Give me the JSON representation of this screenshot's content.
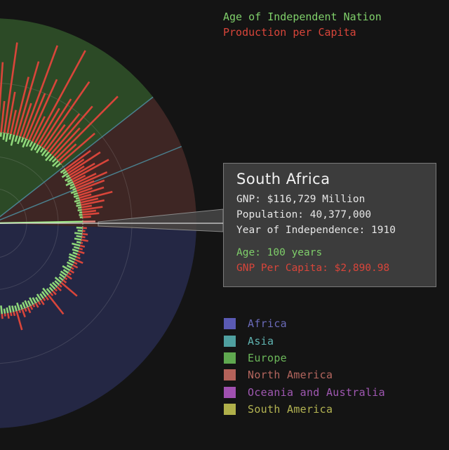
{
  "legend": {
    "age_label": "Age of Independent Nation",
    "production_label": "Production per Capita",
    "age_color": "#7fcf6a",
    "production_color": "#d9453a"
  },
  "tooltip": {
    "country": "South Africa",
    "gnp": "GNP: $116,729 Million",
    "population": "Population: 40,377,000",
    "independence": "Year of Independence: 1910",
    "age": "Age: 100 years",
    "gnp_per_capita": "GNP Per Capita: $2,890.98"
  },
  "regions": [
    {
      "label": "Africa",
      "color": "#5a5ab4",
      "text_color": "#6a6ab8"
    },
    {
      "label": "Asia",
      "color": "#4fa0a0",
      "text_color": "#5fb2b0"
    },
    {
      "label": "Europe",
      "color": "#5fa84f",
      "text_color": "#6cb85a"
    },
    {
      "label": "North America",
      "color": "#b4625a",
      "text_color": "#b4665e"
    },
    {
      "label": "Oceania and Australia",
      "color": "#a050b0",
      "text_color": "#a058b2"
    },
    {
      "label": "South America",
      "color": "#b0b04a",
      "text_color": "#b4b452"
    }
  ],
  "chart_data": {
    "type": "radial-bar",
    "highlighted": "South Africa",
    "series": [
      {
        "name": "Age of Independent Nation",
        "color": "#7fcf6a"
      },
      {
        "name": "Production per Capita",
        "color": "#d9453a"
      }
    ],
    "sectors": [
      {
        "region": "Europe",
        "fill": "#2c4a26",
        "start_deg": 222,
        "end_deg": 322
      },
      {
        "region": "North America",
        "fill": "#3e2624",
        "start_deg": 322,
        "end_deg": 362
      },
      {
        "region": "Africa",
        "fill": "#242744",
        "start_deg": 362,
        "end_deg": 480
      }
    ],
    "bars": {
      "europe_production": [
        55,
        40,
        70,
        30,
        85,
        25,
        60,
        45,
        95,
        35,
        50,
        80,
        20,
        65,
        120,
        40,
        90,
        30,
        75,
        55,
        100,
        45,
        130,
        60,
        35,
        85,
        110,
        50,
        140,
        70,
        95,
        40,
        150,
        60,
        80,
        115,
        45,
        70,
        90,
        55,
        125,
        35,
        65
      ],
      "europe_age": [
        10,
        8,
        14,
        6,
        12,
        20,
        9,
        11,
        35,
        18,
        44,
        13,
        7,
        22,
        10,
        15,
        8,
        12,
        26,
        9,
        14,
        6,
        10,
        12,
        8,
        16,
        9,
        11,
        7,
        13,
        10,
        8,
        12,
        9,
        11,
        7,
        10,
        8,
        12,
        9,
        7,
        11,
        8
      ],
      "north_america_production": [
        45,
        30,
        55,
        25,
        40,
        60,
        20,
        35,
        50,
        28,
        42,
        22,
        38,
        18,
        48,
        26,
        34,
        15,
        30,
        20,
        24,
        12
      ],
      "north_america_age": [
        8,
        6,
        10,
        5,
        9,
        7,
        11,
        6,
        8,
        5,
        9,
        6,
        7,
        5,
        8,
        6,
        7,
        5,
        6,
        4,
        5,
        4
      ],
      "africa_production": [
        6,
        4,
        8,
        5,
        10,
        3,
        7,
        5,
        9,
        4,
        6,
        12,
        5,
        8,
        4,
        7,
        5,
        9,
        4,
        6,
        30,
        5,
        8,
        4,
        7,
        5,
        35,
        6,
        4,
        8,
        5,
        7,
        4,
        6,
        9,
        5,
        12,
        4,
        28,
        6,
        5,
        8,
        4,
        7,
        5,
        14,
        4,
        6,
        5,
        8,
        4,
        6,
        5,
        7,
        4,
        6,
        18,
        5,
        8,
        4,
        6,
        5,
        7
      ],
      "africa_age": [
        9,
        7,
        11,
        8,
        10,
        6,
        12,
        8,
        9,
        7,
        11,
        10,
        8,
        9,
        7,
        12,
        8,
        10,
        9,
        7,
        11,
        8,
        9,
        10,
        7,
        8,
        12,
        9,
        8,
        10,
        7,
        9,
        11,
        8,
        10,
        9,
        7,
        11,
        8,
        9,
        10,
        8,
        7,
        12,
        9,
        8,
        10,
        9,
        11,
        8,
        9,
        7,
        10,
        8,
        9,
        11,
        8,
        10,
        9,
        7,
        8,
        10,
        9
      ]
    },
    "highlight": {
      "angle_deg": 359,
      "age_length": 135,
      "production_length": 150
    }
  }
}
